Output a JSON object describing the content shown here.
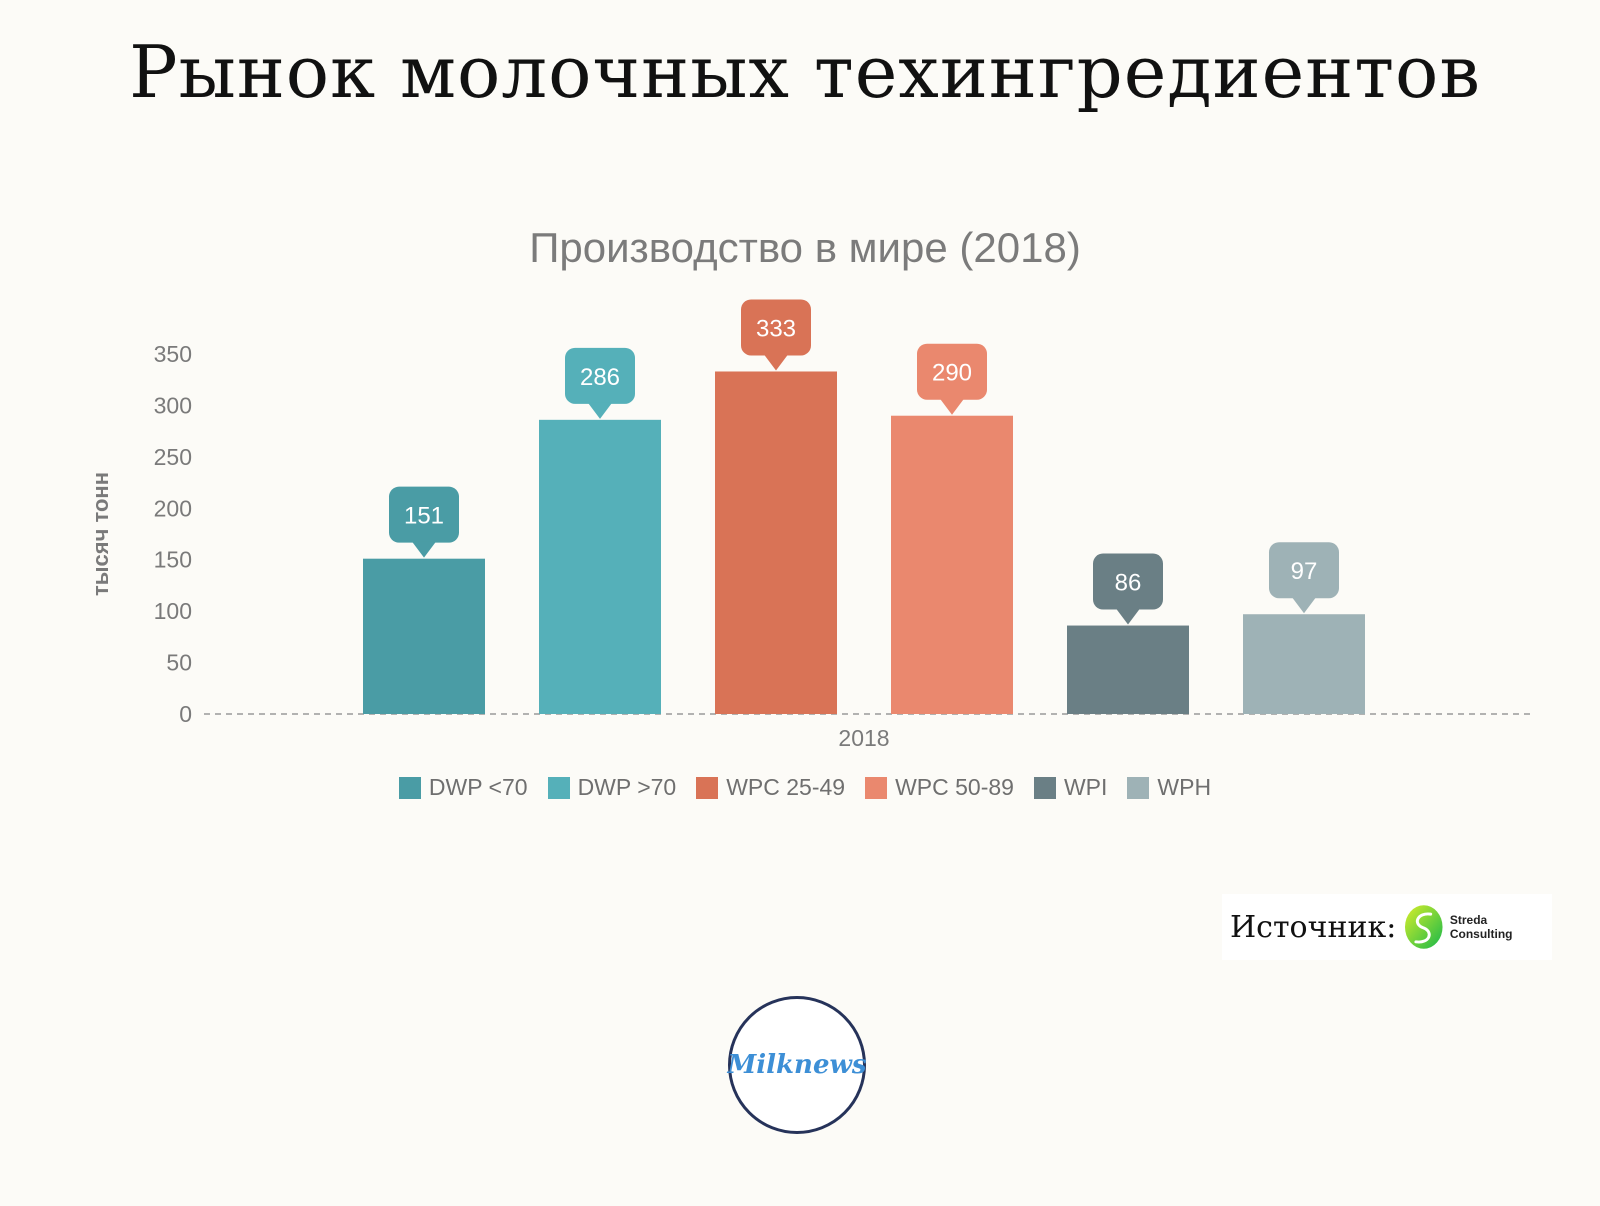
{
  "title": "Рынок молочных техингредиентов",
  "chart_data": {
    "type": "bar",
    "title": "Производство в мире (2018)",
    "xlabel": "",
    "ylabel": "тысяч тонн",
    "categories": [
      "2018"
    ],
    "ylim": [
      0,
      350
    ],
    "yticks": [
      0,
      50,
      100,
      150,
      200,
      250,
      300,
      350
    ],
    "grid": false,
    "legend_position": "bottom",
    "series": [
      {
        "name": "DWP <70",
        "values": [
          151
        ],
        "color": "#4a9ca5"
      },
      {
        "name": "DWP >70",
        "values": [
          286
        ],
        "color": "#55b0b9"
      },
      {
        "name": "WPC 25-49",
        "values": [
          333
        ],
        "color": "#d97356"
      },
      {
        "name": "WPC 50-89",
        "values": [
          290
        ],
        "color": "#ea886e"
      },
      {
        "name": "WPI",
        "values": [
          86
        ],
        "color": "#6a7f85"
      },
      {
        "name": "WPH",
        "values": [
          97
        ],
        "color": "#9eb2b6"
      }
    ]
  },
  "source": {
    "label": "Источник:",
    "name": "Streda Consulting"
  },
  "brand": {
    "name": "Milknews"
  }
}
